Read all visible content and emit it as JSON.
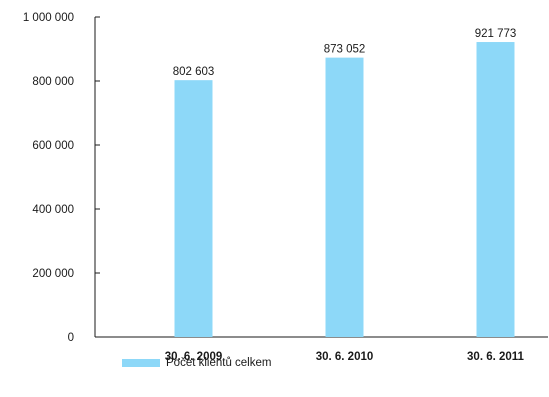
{
  "chart_data": {
    "type": "bar",
    "categories": [
      "30. 6. 2009",
      "30. 6. 2010",
      "30. 6. 2011"
    ],
    "series": [
      {
        "name": "Počet klientů celkem",
        "values": [
          802603,
          873052,
          921773
        ]
      }
    ],
    "data_labels": [
      "802 603",
      "873 052",
      "921 773"
    ],
    "y_tick_labels": [
      "0",
      "200 000",
      "400 000",
      "600 000",
      "800 000",
      "1 000 000"
    ],
    "y_ticks": [
      0,
      200000,
      400000,
      600000,
      800000,
      1000000
    ],
    "ylim": [
      0,
      1000000
    ],
    "title": "",
    "xlabel": "",
    "ylabel": "",
    "grid": false,
    "legend_position": "bottom-left",
    "bar_color": "#8dd8f8",
    "axis_color": "#1a1a1a"
  }
}
